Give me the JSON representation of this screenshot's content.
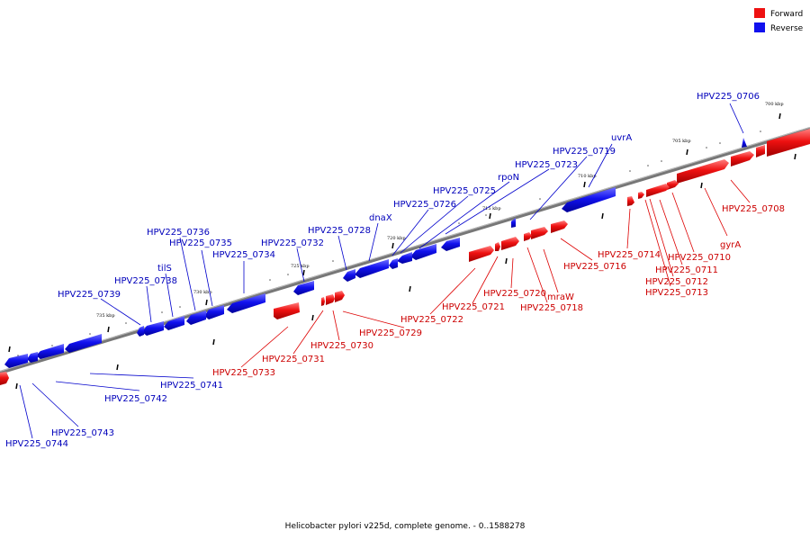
{
  "legend": {
    "forward": "Forward",
    "reverse": "Reverse"
  },
  "colors": {
    "forward": "#ee1111",
    "reverse": "#1111ee",
    "forward_label": "#cc0000",
    "reverse_label": "#0000bb",
    "backbone": "#777777"
  },
  "caption": "Helicobacter pylori v225d, complete genome. - 0..1588278",
  "scale_labels": [
    "700 kbp",
    "705 kbp",
    "710 kbp",
    "715 kbp",
    "720 kbp",
    "725 kbp",
    "730 kbp",
    "735 kbp"
  ],
  "reverse_genes": [
    "HPV225_0706",
    "uvrA",
    "HPV225_0719",
    "HPV225_0723",
    "rpoN",
    "HPV225_0725",
    "HPV225_0726",
    "dnaX",
    "HPV225_0728",
    "HPV225_0732",
    "HPV225_0734",
    "HPV225_0735",
    "HPV225_0736",
    "tilS",
    "HPV225_0738",
    "HPV225_0739",
    "HPV225_0741",
    "HPV225_0742",
    "HPV225_0743",
    "HPV225_0744"
  ],
  "forward_genes": [
    "HPV225_0708",
    "gyrA",
    "HPV225_0710",
    "HPV225_0711",
    "HPV225_0712",
    "HPV225_0713",
    "HPV225_0714",
    "HPV225_0716",
    "mraW",
    "HPV225_0718",
    "HPV225_0720",
    "HPV225_0721",
    "HPV225_0722",
    "HPV225_0729",
    "HPV225_0730",
    "HPV225_0731",
    "HPV225_0733"
  ]
}
